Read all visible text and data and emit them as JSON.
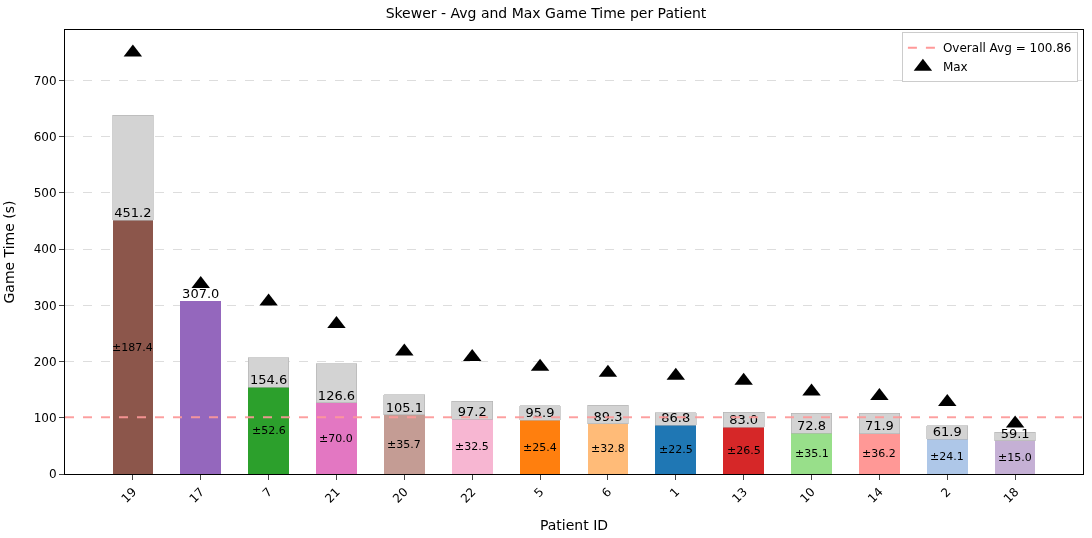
{
  "chart_data": {
    "type": "bar",
    "title": "Skewer - Avg and Max Game Time per Patient",
    "xlabel": "Patient ID",
    "ylabel": "Game Time (s)",
    "categories": [
      "19",
      "17",
      "7",
      "21",
      "20",
      "22",
      "5",
      "6",
      "1",
      "13",
      "10",
      "14",
      "2",
      "18"
    ],
    "stacked": true,
    "series": [
      {
        "colors": [
          "#8c564b",
          "#9467bd",
          "#2ca02c",
          "#e377c2",
          "#c49c94",
          "#f7b6d2",
          "#ff7f0e",
          "#ffbb78",
          "#1f77b4",
          "#d62728",
          "#98df8a",
          "#ff9896",
          "#aec7e8",
          "#c5b0d5"
        ],
        "values": [
          451.2,
          307.0,
          154.6,
          126.6,
          105.1,
          97.2,
          95.9,
          89.3,
          86.8,
          83.0,
          72.8,
          71.9,
          61.9,
          59.1
        ],
        "value_labels": [
          "451.2",
          "307.0",
          "154.6",
          "126.6",
          "105.1",
          "97.2",
          "95.9",
          "89.3",
          "86.8",
          "83.0",
          "72.8",
          "71.9",
          "61.9",
          "59.1"
        ]
      },
      {
        "color": "#d3d3d3",
        "values": [
          187.4,
          null,
          52.6,
          70.0,
          35.7,
          32.5,
          25.4,
          32.8,
          22.5,
          26.5,
          35.1,
          36.2,
          24.1,
          15.0
        ]
      },
      {
        "name": "Max",
        "type": "scatter",
        "marker": "triangle",
        "color": "#000000",
        "x": [
          "19",
          "17",
          "7",
          "21",
          "20",
          "22",
          "5",
          "6",
          "1",
          "13",
          "10",
          "14",
          "2",
          "18"
        ],
        "values": [
          750,
          338,
          307,
          267,
          218,
          208,
          191,
          180,
          175,
          166,
          147,
          139,
          128,
          90
        ]
      }
    ],
    "annotations": [
      "±187.4",
      "±52.6",
      "±70.0",
      "±35.7",
      "±32.5",
      "±25.4",
      "±32.8",
      "±22.5",
      "±26.5",
      "±35.1",
      "±36.2",
      "±24.1",
      "±15.0"
    ],
    "ref_lines": [
      {
        "axis": "y",
        "value": 100.86,
        "label": "Overall Avg = 100.86",
        "color": "#ff9999",
        "line_style": "dashed"
      }
    ],
    "ylim": [
      0,
      790
    ],
    "yticks": [
      0,
      100,
      200,
      300,
      400,
      500,
      600,
      700
    ],
    "grid": "y",
    "legend": "top right"
  }
}
